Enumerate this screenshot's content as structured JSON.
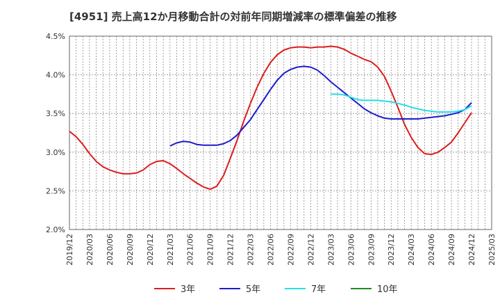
{
  "chart_data": {
    "type": "line",
    "title": "[4951]  売上高12か月移動合計の対前年同期増減率の標準偏差の推移",
    "xlabel": "",
    "ylabel": "",
    "ylim": [
      2.0,
      4.5
    ],
    "y_ticks": [
      "2.0%",
      "2.5%",
      "3.0%",
      "3.5%",
      "4.0%",
      "4.5%"
    ],
    "y_tick_values": [
      2.0,
      2.5,
      3.0,
      3.5,
      4.0,
      4.5
    ],
    "x_ticks": [
      "2019/12",
      "2020/03",
      "2020/06",
      "2020/09",
      "2020/12",
      "2021/03",
      "2021/06",
      "2021/09",
      "2021/12",
      "2022/03",
      "2022/06",
      "2022/09",
      "2022/12",
      "2023/03",
      "2023/06",
      "2023/09",
      "2023/12",
      "2024/03",
      "2024/06",
      "2024/09",
      "2024/12",
      "2025/03"
    ],
    "grid": true,
    "legend_position": "bottom",
    "series": [
      {
        "name": "3年",
        "color": "#dd1c1c",
        "x": [
          "2019/12",
          "2020/01",
          "2020/02",
          "2020/03",
          "2020/04",
          "2020/05",
          "2020/06",
          "2020/07",
          "2020/08",
          "2020/09",
          "2020/10",
          "2020/11",
          "2020/12",
          "2021/01",
          "2021/02",
          "2021/03",
          "2021/04",
          "2021/05",
          "2021/06",
          "2021/07",
          "2021/08",
          "2021/09",
          "2021/10",
          "2021/11",
          "2021/12",
          "2022/01",
          "2022/02",
          "2022/03",
          "2022/04",
          "2022/05",
          "2022/06",
          "2022/07",
          "2022/08",
          "2022/09",
          "2022/10",
          "2022/11",
          "2022/12",
          "2023/01",
          "2023/02",
          "2023/03",
          "2023/04",
          "2023/05",
          "2023/06",
          "2023/07",
          "2023/08",
          "2023/09",
          "2023/10",
          "2023/11",
          "2023/12",
          "2024/01",
          "2024/02",
          "2024/03",
          "2024/04",
          "2024/05",
          "2024/06",
          "2024/07",
          "2024/08",
          "2024/09",
          "2024/10",
          "2024/11",
          "2024/12"
        ],
        "values": [
          3.27,
          3.2,
          3.1,
          2.98,
          2.88,
          2.81,
          2.77,
          2.74,
          2.72,
          2.72,
          2.73,
          2.77,
          2.84,
          2.88,
          2.89,
          2.85,
          2.79,
          2.72,
          2.66,
          2.6,
          2.55,
          2.52,
          2.56,
          2.7,
          2.92,
          3.15,
          3.4,
          3.63,
          3.84,
          4.02,
          4.16,
          4.26,
          4.32,
          4.35,
          4.36,
          4.36,
          4.35,
          4.36,
          4.36,
          4.37,
          4.36,
          4.33,
          4.28,
          4.24,
          4.2,
          4.17,
          4.1,
          3.98,
          3.79,
          3.58,
          3.36,
          3.19,
          3.06,
          2.98,
          2.97,
          3.0,
          3.06,
          3.13,
          3.25,
          3.38,
          3.51
        ]
      },
      {
        "name": "5年",
        "color": "#1c1ccc",
        "x": [
          "2021/03",
          "2021/04",
          "2021/05",
          "2021/06",
          "2021/07",
          "2021/08",
          "2021/09",
          "2021/10",
          "2021/11",
          "2021/12",
          "2022/01",
          "2022/02",
          "2022/03",
          "2022/04",
          "2022/05",
          "2022/06",
          "2022/07",
          "2022/08",
          "2022/09",
          "2022/10",
          "2022/11",
          "2022/12",
          "2023/01",
          "2023/02",
          "2023/03",
          "2023/04",
          "2023/05",
          "2023/06",
          "2023/07",
          "2023/08",
          "2023/09",
          "2023/10",
          "2023/11",
          "2023/12",
          "2024/01",
          "2024/02",
          "2024/03",
          "2024/04",
          "2024/05",
          "2024/06",
          "2024/07",
          "2024/08",
          "2024/09",
          "2024/10",
          "2024/11",
          "2024/12"
        ],
        "values": [
          3.08,
          3.12,
          3.14,
          3.13,
          3.1,
          3.09,
          3.09,
          3.09,
          3.11,
          3.15,
          3.22,
          3.32,
          3.42,
          3.55,
          3.68,
          3.81,
          3.93,
          4.02,
          4.07,
          4.1,
          4.11,
          4.1,
          4.06,
          3.99,
          3.91,
          3.84,
          3.77,
          3.7,
          3.63,
          3.56,
          3.51,
          3.47,
          3.44,
          3.43,
          3.43,
          3.43,
          3.43,
          3.43,
          3.44,
          3.45,
          3.46,
          3.47,
          3.49,
          3.51,
          3.55,
          3.64
        ]
      },
      {
        "name": "7年",
        "color": "#22e0e8",
        "x": [
          "2023/03",
          "2023/04",
          "2023/05",
          "2023/06",
          "2023/07",
          "2023/08",
          "2023/09",
          "2023/10",
          "2023/11",
          "2023/12",
          "2024/01",
          "2024/02",
          "2024/03",
          "2024/04",
          "2024/05",
          "2024/06",
          "2024/07",
          "2024/08",
          "2024/09",
          "2024/10",
          "2024/11",
          "2024/12"
        ],
        "values": [
          3.75,
          3.75,
          3.74,
          3.71,
          3.68,
          3.67,
          3.67,
          3.67,
          3.66,
          3.65,
          3.63,
          3.61,
          3.58,
          3.56,
          3.54,
          3.53,
          3.52,
          3.52,
          3.52,
          3.53,
          3.55,
          3.6
        ]
      },
      {
        "name": "10年",
        "color": "#1e8c1e",
        "x": [],
        "values": []
      }
    ]
  }
}
